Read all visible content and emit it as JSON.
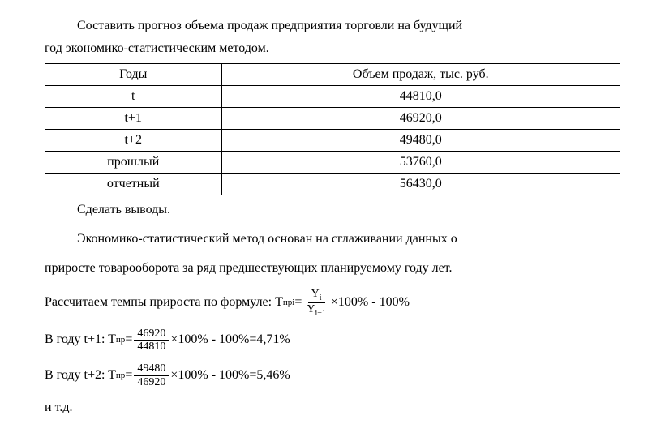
{
  "intro": {
    "line1": "Составить прогноз объема продаж предприятия торговли на будущий",
    "line2": "год экономико-статистическим методом."
  },
  "table": {
    "header_col1": "Годы",
    "header_col2": "Объем продаж, тыс. руб.",
    "rows": [
      {
        "c1": "t",
        "c2": "44810,0"
      },
      {
        "c1": "t+1",
        "c2": "46920,0"
      },
      {
        "c1": "t+2",
        "c2": "49480,0"
      },
      {
        "c1": "прошлый",
        "c2": "53760,0"
      },
      {
        "c1": "отчетный",
        "c2": "56430,0"
      }
    ]
  },
  "conclusion": "Сделать выводы.",
  "method": {
    "line1": "Экономико-статистический метод  основан на сглаживании данных о",
    "line2": "приросте товарооборота за ряд предшествующих планируемому году лет."
  },
  "formula_main": {
    "prefix": "Рассчитаем темпы прироста по формуле: T",
    "sub_label": "прi",
    "eq": "=",
    "num_label": "Y",
    "num_sub": "i",
    "den_label": "Y",
    "den_sub": "i−1",
    "suffix": "×100% - 100%"
  },
  "calc_t1": {
    "prefix": "В году t+1: T",
    "sub_label": "пр",
    "eq": "=",
    "num": "46920",
    "den": "44810",
    "suffix": "×100% - 100%=4,71%"
  },
  "calc_t2": {
    "prefix": "В году t+2: T",
    "sub_label": "пр",
    "eq": "=",
    "num": "49480",
    "den": "46920",
    "suffix": "×100% - 100%=5,46%"
  },
  "etc": "и т.д."
}
